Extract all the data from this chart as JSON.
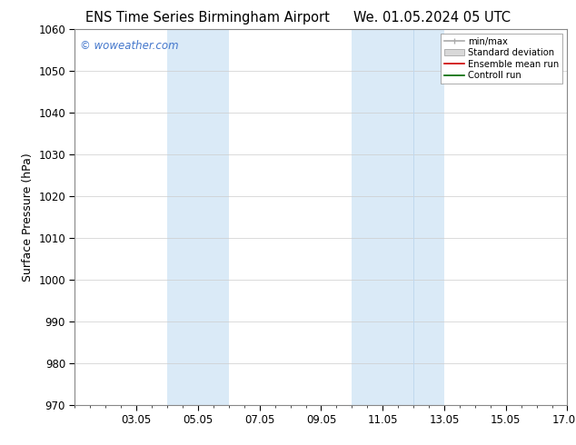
{
  "title_left": "ENS Time Series Birmingham Airport",
  "title_right": "We. 01.05.2024 05 UTC",
  "ylabel": "Surface Pressure (hPa)",
  "xlim_left": 1.05,
  "xlim_right": 17.05,
  "ylim_bottom": 970,
  "ylim_top": 1060,
  "yticks": [
    970,
    980,
    990,
    1000,
    1010,
    1020,
    1030,
    1040,
    1050,
    1060
  ],
  "xtick_labels": [
    "03.05",
    "05.05",
    "07.05",
    "09.05",
    "11.05",
    "13.05",
    "15.05",
    "17.05"
  ],
  "xtick_positions": [
    3.05,
    5.05,
    7.05,
    9.05,
    11.05,
    13.05,
    15.05,
    17.05
  ],
  "shaded_regions": [
    {
      "x_start": 4.05,
      "x_end": 6.05
    },
    {
      "x_start": 10.05,
      "x_end": 13.05
    }
  ],
  "shade_color": "#daeaf7",
  "watermark_text": "© woweather.com",
  "watermark_color": "#4477cc",
  "legend_labels": [
    "min/max",
    "Standard deviation",
    "Ensemble mean run",
    "Controll run"
  ],
  "background_color": "#ffffff",
  "plot_bg_color": "#ffffff",
  "grid_color": "#cccccc",
  "title_fontsize": 10.5
}
